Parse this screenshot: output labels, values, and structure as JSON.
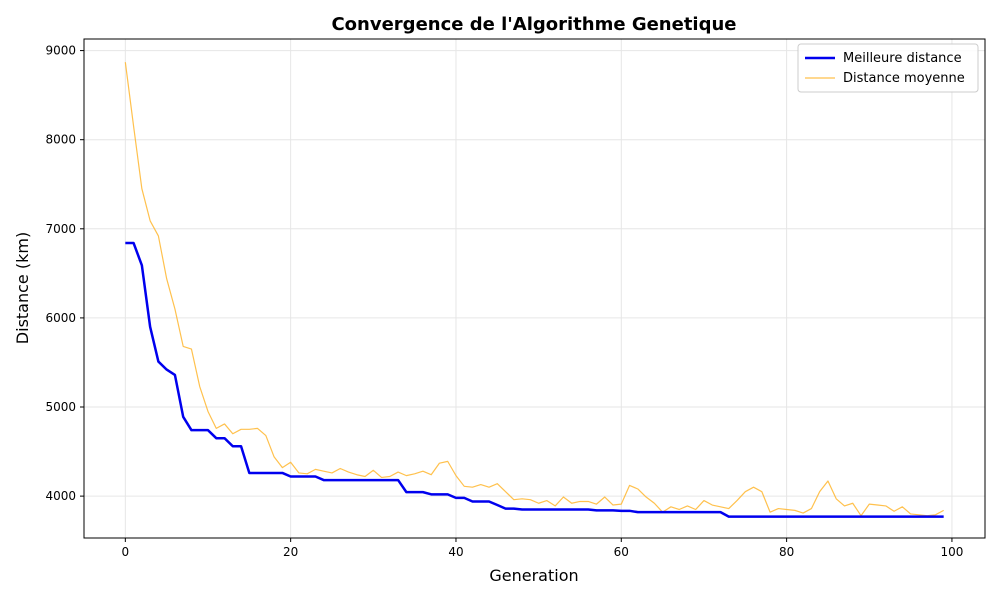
{
  "chart_data": {
    "type": "line",
    "title": "Convergence de l'Algorithme Genetique",
    "xlabel": "Generation",
    "ylabel": "Distance (km)",
    "xlim": [
      -5,
      104
    ],
    "ylim": [
      3530,
      9130
    ],
    "xticks": [
      0,
      20,
      40,
      60,
      80,
      100
    ],
    "yticks": [
      4000,
      5000,
      6000,
      7000,
      8000,
      9000
    ],
    "grid": true,
    "legend_position": "top-right",
    "x": [
      0,
      1,
      2,
      3,
      4,
      5,
      6,
      7,
      8,
      9,
      10,
      11,
      12,
      13,
      14,
      15,
      16,
      17,
      18,
      19,
      20,
      21,
      22,
      23,
      24,
      25,
      26,
      27,
      28,
      29,
      30,
      31,
      32,
      33,
      34,
      35,
      36,
      37,
      38,
      39,
      40,
      41,
      42,
      43,
      44,
      45,
      46,
      47,
      48,
      49,
      50,
      51,
      52,
      53,
      54,
      55,
      56,
      57,
      58,
      59,
      60,
      61,
      62,
      63,
      64,
      65,
      66,
      67,
      68,
      69,
      70,
      71,
      72,
      73,
      74,
      75,
      76,
      77,
      78,
      79,
      80,
      81,
      82,
      83,
      84,
      85,
      86,
      87,
      88,
      89,
      90,
      91,
      92,
      93,
      94,
      95,
      96,
      97,
      98,
      99
    ],
    "series": [
      {
        "name": "Meilleure distance",
        "color": "#0000ee",
        "values": [
          6840,
          6840,
          6590,
          5900,
          5510,
          5420,
          5360,
          4890,
          4740,
          4740,
          4740,
          4650,
          4650,
          4560,
          4560,
          4260,
          4260,
          4260,
          4260,
          4260,
          4220,
          4220,
          4220,
          4220,
          4180,
          4180,
          4180,
          4180,
          4180,
          4180,
          4180,
          4180,
          4180,
          4180,
          4045,
          4045,
          4045,
          4020,
          4020,
          4020,
          3980,
          3980,
          3940,
          3940,
          3940,
          3900,
          3860,
          3860,
          3850,
          3850,
          3850,
          3850,
          3850,
          3850,
          3850,
          3850,
          3850,
          3840,
          3840,
          3840,
          3835,
          3835,
          3820,
          3820,
          3820,
          3820,
          3820,
          3820,
          3820,
          3820,
          3820,
          3820,
          3820,
          3770,
          3770,
          3770,
          3770,
          3770,
          3770,
          3770,
          3770,
          3770,
          3770,
          3770,
          3770,
          3770,
          3770,
          3770,
          3770,
          3770,
          3770,
          3770,
          3770,
          3770,
          3770,
          3770,
          3770,
          3770,
          3770,
          3770
        ]
      },
      {
        "name": "Distance moyenne",
        "color": "#ffb62e",
        "values": [
          8870,
          8150,
          7450,
          7090,
          6920,
          6440,
          6100,
          5680,
          5650,
          5230,
          4950,
          4760,
          4810,
          4700,
          4750,
          4750,
          4760,
          4680,
          4440,
          4320,
          4380,
          4260,
          4250,
          4300,
          4280,
          4260,
          4310,
          4270,
          4240,
          4220,
          4290,
          4210,
          4220,
          4270,
          4230,
          4250,
          4280,
          4240,
          4370,
          4390,
          4230,
          4110,
          4100,
          4130,
          4100,
          4140,
          4050,
          3960,
          3970,
          3960,
          3920,
          3950,
          3890,
          3990,
          3920,
          3940,
          3940,
          3910,
          3990,
          3900,
          3910,
          4120,
          4080,
          3990,
          3920,
          3820,
          3880,
          3850,
          3890,
          3850,
          3950,
          3900,
          3880,
          3860,
          3950,
          4050,
          4100,
          4050,
          3820,
          3860,
          3850,
          3840,
          3810,
          3860,
          4050,
          4170,
          3970,
          3890,
          3920,
          3780,
          3910,
          3900,
          3890,
          3830,
          3880,
          3800,
          3790,
          3780,
          3790,
          3840
        ]
      }
    ]
  }
}
